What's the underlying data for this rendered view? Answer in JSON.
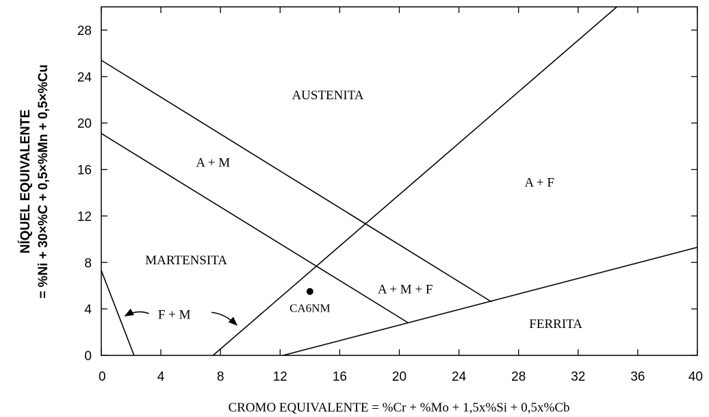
{
  "chart_data": {
    "type": "line",
    "title": "",
    "xlabel": "CROMO EQUIVALENTE = %Cr + %Mo + 1,5x%Si + 0,5x%Cb",
    "ylabel_line1": "NÍQUEL EQUIVALENTE",
    "ylabel_line2": "= %Ni + 30×%C + 0,5×%Mn + 0,5×%Cu",
    "xlim": [
      0,
      40
    ],
    "ylim": [
      0,
      30
    ],
    "grid": false,
    "x_ticks": [
      "0",
      "4",
      "8",
      "12",
      "16",
      "20",
      "24",
      "28",
      "32",
      "36",
      "40"
    ],
    "y_ticks": [
      "0",
      "4",
      "8",
      "12",
      "16",
      "20",
      "24",
      "28"
    ],
    "series": [
      {
        "points": [
          [
            0,
            25.4
          ],
          [
            26.2,
            4.6
          ]
        ]
      },
      {
        "points": [
          [
            0,
            19.1
          ],
          [
            20.6,
            2.8
          ]
        ]
      },
      {
        "points": [
          [
            7.5,
            0
          ],
          [
            34.6,
            30
          ]
        ]
      },
      {
        "points": [
          [
            12.2,
            0
          ],
          [
            40,
            9.3
          ]
        ]
      },
      {
        "points": [
          [
            0,
            7.3
          ],
          [
            2.2,
            0
          ]
        ]
      }
    ],
    "region_labels": [
      {
        "text": "AUSTENITA",
        "x": 15.2,
        "y": 22.3
      },
      {
        "text": "A + M",
        "x": 7.5,
        "y": 16.5
      },
      {
        "text": "A + F",
        "x": 29.4,
        "y": 14.8
      },
      {
        "text": "MARTENSITA",
        "x": 5.7,
        "y": 8.1
      },
      {
        "text": "A + M + F",
        "x": 20.4,
        "y": 5.6
      },
      {
        "text": "F + M",
        "x": 4.9,
        "y": 3.4
      },
      {
        "text": "FERRITA",
        "x": 30.5,
        "y": 2.6
      }
    ],
    "arrows": [
      {
        "from": [
          3.2,
          3.6
        ],
        "to": [
          1.6,
          3.4
        ]
      },
      {
        "from": [
          7.4,
          3.7
        ],
        "to": [
          9.1,
          2.6
        ]
      }
    ],
    "points": [
      {
        "name": "CA6NM",
        "x": 14.0,
        "y": 5.5
      }
    ]
  }
}
